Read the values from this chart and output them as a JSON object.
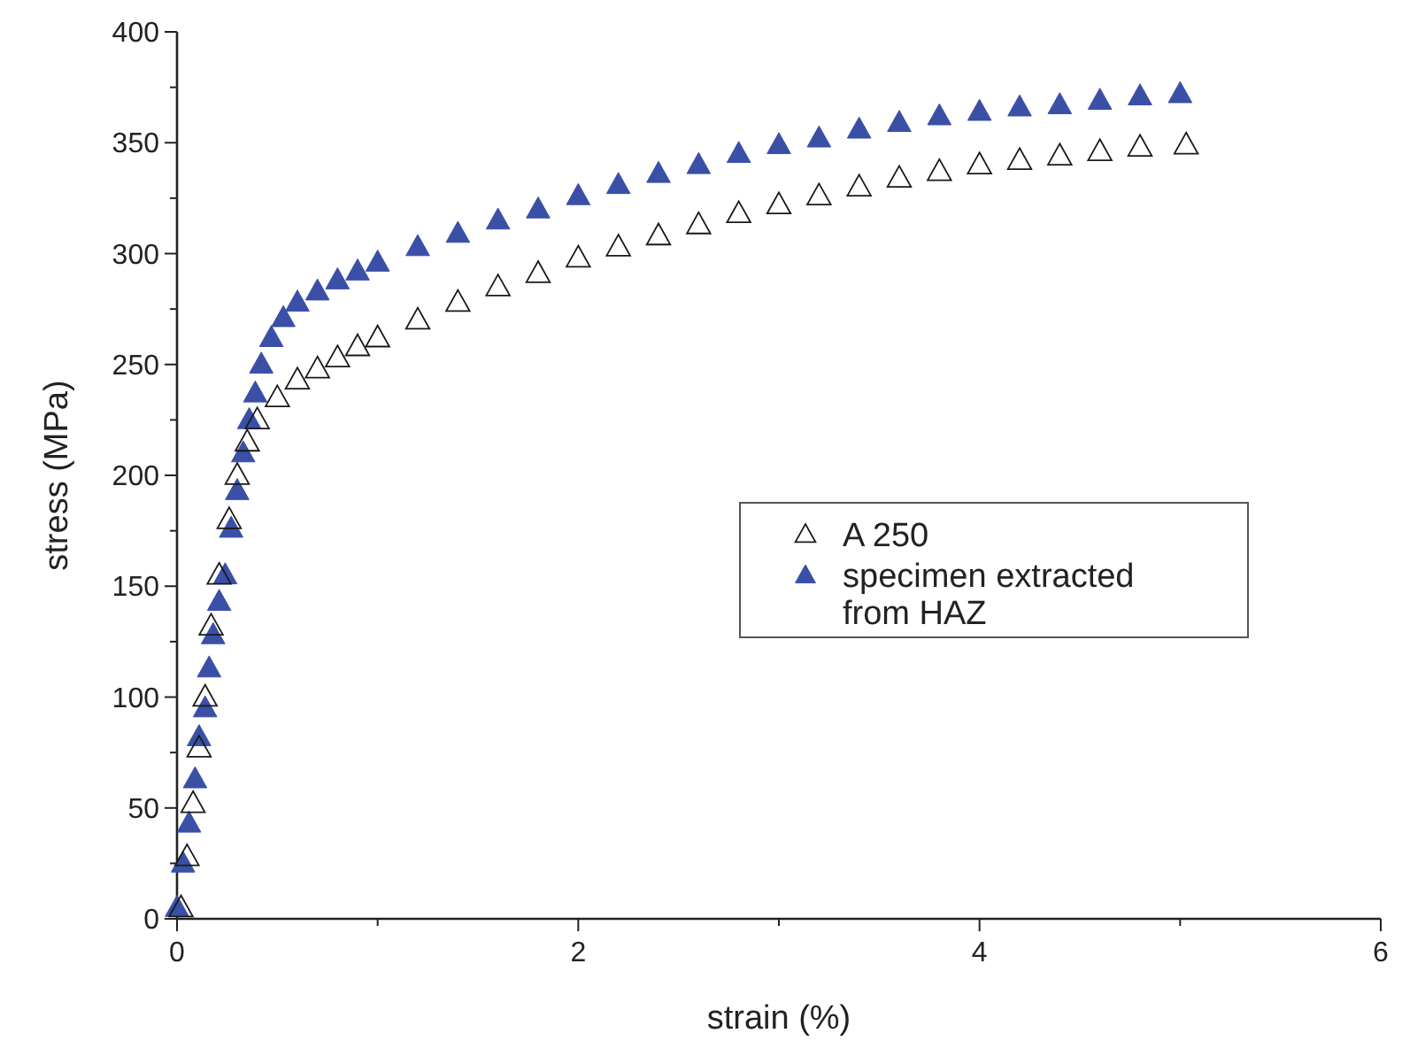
{
  "chart_data": {
    "type": "scatter",
    "xlabel": "strain (%)",
    "ylabel": "stress (MPa)",
    "xlim": [
      0,
      6
    ],
    "xticks": [
      0,
      {
        "value": 1,
        "label": null
      },
      2,
      {
        "value": 3,
        "label": null
      },
      4,
      {
        "value": 5,
        "label": null
      },
      6
    ],
    "ylim": [
      0,
      400
    ],
    "yticks": [
      0,
      {
        "value": 25,
        "label": null
      },
      50,
      {
        "value": 75,
        "label": null
      },
      100,
      {
        "value": 125,
        "label": null
      },
      150,
      {
        "value": 175,
        "label": null
      },
      200,
      {
        "value": 225,
        "label": null
      },
      250,
      {
        "value": 275,
        "label": null
      },
      300,
      {
        "value": 325,
        "label": null
      },
      350,
      {
        "value": 375,
        "label": null
      },
      400
    ],
    "grid": false,
    "legend": "right",
    "marker": "triangle",
    "series": [
      {
        "name": "A 250",
        "color": "#1a1a1a",
        "x": [
          0.02,
          0.05,
          0.08,
          0.11,
          0.14,
          0.17,
          0.21,
          0.26,
          0.3,
          0.35,
          0.4,
          0.5,
          0.6,
          0.7,
          0.8,
          0.9,
          1.0,
          1.2,
          1.4,
          1.6,
          1.8,
          2.0,
          2.2,
          2.4,
          2.6,
          2.8,
          3.0,
          3.2,
          3.4,
          3.6,
          3.8,
          4.0,
          4.2,
          4.4,
          4.6,
          4.8,
          5.03
        ],
        "values": [
          5,
          28,
          52,
          77,
          100,
          132,
          155,
          180,
          200,
          215,
          225,
          235,
          243,
          248,
          253,
          258,
          262,
          270,
          278,
          285,
          291,
          298,
          303,
          308,
          313,
          318,
          322,
          326,
          330,
          334,
          337,
          340,
          342,
          344,
          346,
          348,
          349
        ]
      },
      {
        "name": "specimen extracted from HAZ",
        "color": "#3a4fa6",
        "x": [
          0.0,
          0.03,
          0.06,
          0.09,
          0.11,
          0.14,
          0.16,
          0.18,
          0.21,
          0.24,
          0.27,
          0.3,
          0.33,
          0.36,
          0.39,
          0.42,
          0.47,
          0.53,
          0.6,
          0.7,
          0.8,
          0.9,
          1.0,
          1.2,
          1.4,
          1.6,
          1.8,
          2.0,
          2.2,
          2.4,
          2.6,
          2.8,
          3.0,
          3.2,
          3.4,
          3.6,
          3.8,
          4.0,
          4.2,
          4.4,
          4.6,
          4.8,
          5.0
        ],
        "values": [
          5,
          25,
          43,
          63,
          82,
          95,
          113,
          128,
          143,
          155,
          176,
          193,
          210,
          225,
          237,
          250,
          262,
          271,
          278,
          283,
          288,
          292,
          296,
          303,
          309,
          315,
          320,
          326,
          331,
          336,
          340,
          345,
          349,
          352,
          356,
          359,
          362,
          364,
          366,
          367,
          369,
          371,
          372
        ]
      }
    ]
  }
}
